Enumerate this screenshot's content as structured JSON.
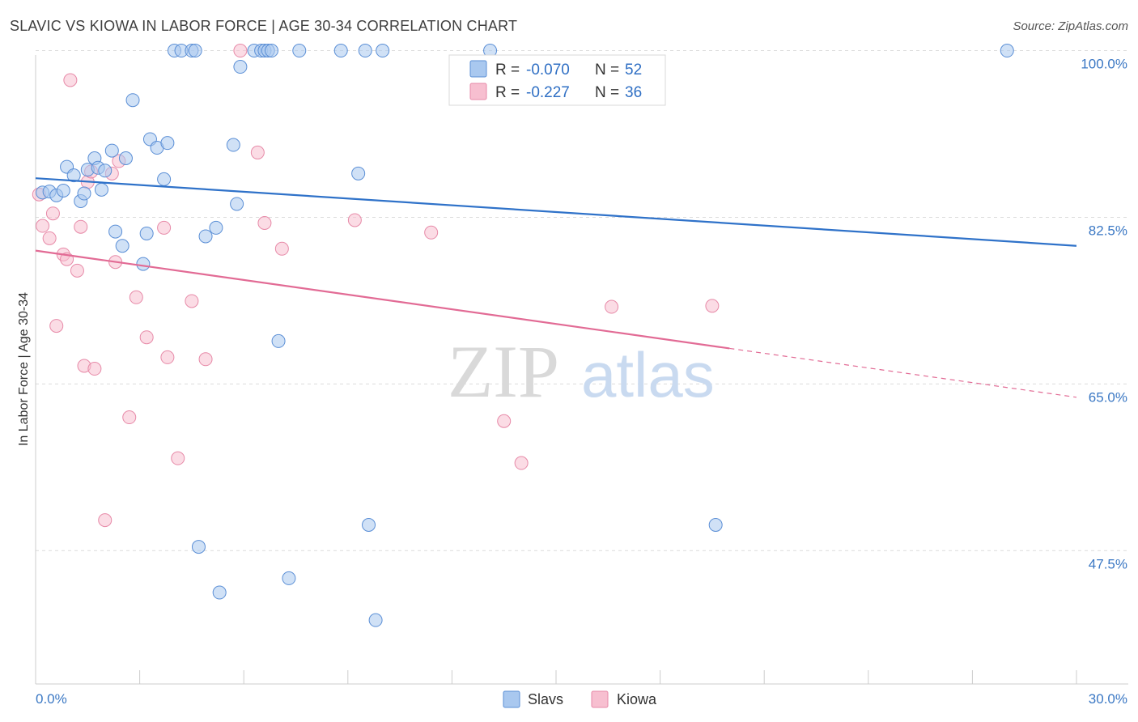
{
  "title": "SLAVIC VS KIOWA IN LABOR FORCE | AGE 30-34 CORRELATION CHART",
  "source": "Source: ZipAtlas.com",
  "watermark": {
    "zip": "ZIP",
    "atlas": "atlas"
  },
  "colors": {
    "slavs_fill": "#a9c8ef",
    "slavs_stroke": "#5b8fd6",
    "slavs_line": "#2f72c9",
    "kiowa_fill": "#f7bfd0",
    "kiowa_stroke": "#e78aa8",
    "kiowa_line": "#e26b95",
    "tick_text": "#3b78c4",
    "grid": "#dcdcdc"
  },
  "legend": {
    "r_label": "R =",
    "n_label": "N =",
    "rows": [
      {
        "series": "Slavs",
        "r": "-0.070",
        "n": "52"
      },
      {
        "series": "Kiowa",
        "r": "-0.227",
        "n": "36"
      }
    ]
  },
  "bottom_legend": [
    "Slavs",
    "Kiowa"
  ],
  "chart_data": {
    "type": "scatter",
    "title": "SLAVIC VS KIOWA IN LABOR FORCE | AGE 30-34 CORRELATION CHART",
    "xlabel": "",
    "ylabel": "In Labor Force | Age 30-34",
    "xlim": [
      0,
      30
    ],
    "ylim": [
      33.5,
      102.0
    ],
    "x_tick_labels": [
      {
        "value": 0,
        "label": "0.0%"
      },
      {
        "value": 30,
        "label": "30.0%"
      }
    ],
    "y_tick_labels": [
      {
        "value": 100.0,
        "label": "100.0%"
      },
      {
        "value": 82.5,
        "label": "82.5%"
      },
      {
        "value": 65.0,
        "label": "65.0%"
      },
      {
        "value": 47.5,
        "label": "47.5%"
      }
    ],
    "y_grid": [
      100.0,
      82.5,
      65.0,
      47.5
    ],
    "x_minor_ticks": [
      3,
      6,
      9,
      12,
      15,
      18,
      21,
      24,
      27,
      30
    ],
    "series": [
      {
        "name": "Slavs",
        "r": -0.07,
        "n": 52,
        "trend": {
          "x": [
            0,
            30
          ],
          "y": [
            86.6,
            79.5
          ],
          "solid_until": 30
        },
        "points": [
          [
            0.2,
            85.1
          ],
          [
            0.4,
            85.2
          ],
          [
            0.6,
            84.8
          ],
          [
            0.8,
            85.3
          ],
          [
            0.9,
            87.8
          ],
          [
            1.1,
            86.9
          ],
          [
            1.3,
            84.2
          ],
          [
            1.4,
            85.0
          ],
          [
            1.5,
            87.5
          ],
          [
            1.7,
            88.7
          ],
          [
            1.8,
            87.7
          ],
          [
            1.9,
            85.4
          ],
          [
            2.0,
            87.4
          ],
          [
            2.2,
            89.5
          ],
          [
            2.3,
            81.0
          ],
          [
            2.5,
            79.5
          ],
          [
            2.6,
            88.7
          ],
          [
            2.8,
            94.8
          ],
          [
            3.1,
            77.6
          ],
          [
            3.2,
            80.8
          ],
          [
            3.3,
            90.7
          ],
          [
            3.5,
            89.8
          ],
          [
            3.7,
            86.5
          ],
          [
            3.8,
            90.3
          ],
          [
            4.0,
            100.0
          ],
          [
            4.2,
            100.0
          ],
          [
            4.5,
            100.0
          ],
          [
            4.6,
            100.0
          ],
          [
            4.7,
            47.9
          ],
          [
            4.9,
            80.5
          ],
          [
            5.2,
            81.4
          ],
          [
            5.3,
            43.1
          ],
          [
            5.7,
            90.1
          ],
          [
            5.8,
            83.9
          ],
          [
            5.9,
            98.3
          ],
          [
            6.3,
            100.0
          ],
          [
            6.5,
            100.0
          ],
          [
            6.6,
            100.0
          ],
          [
            6.7,
            100.0
          ],
          [
            6.8,
            100.0
          ],
          [
            7.0,
            69.5
          ],
          [
            7.3,
            44.6
          ],
          [
            7.6,
            100.0
          ],
          [
            8.8,
            100.0
          ],
          [
            9.3,
            87.1
          ],
          [
            9.5,
            100.0
          ],
          [
            9.6,
            50.2
          ],
          [
            9.8,
            40.2
          ],
          [
            10.0,
            100.0
          ],
          [
            13.1,
            100.0
          ],
          [
            19.6,
            50.2
          ],
          [
            28.0,
            100.0
          ]
        ]
      },
      {
        "name": "Kiowa",
        "r": -0.227,
        "n": 36,
        "trend": {
          "x": [
            0,
            30
          ],
          "y": [
            79.0,
            63.6
          ],
          "solid_until": 20
        },
        "points": [
          [
            0.1,
            84.9
          ],
          [
            0.2,
            81.6
          ],
          [
            0.4,
            80.3
          ],
          [
            0.5,
            82.9
          ],
          [
            0.6,
            71.1
          ],
          [
            0.8,
            78.6
          ],
          [
            0.9,
            78.1
          ],
          [
            1.0,
            96.9
          ],
          [
            1.2,
            76.9
          ],
          [
            1.3,
            81.5
          ],
          [
            1.4,
            66.9
          ],
          [
            1.5,
            86.2
          ],
          [
            1.6,
            87.3
          ],
          [
            1.7,
            66.6
          ],
          [
            2.0,
            50.7
          ],
          [
            2.2,
            87.1
          ],
          [
            2.3,
            77.8
          ],
          [
            2.4,
            88.4
          ],
          [
            2.7,
            61.5
          ],
          [
            2.9,
            74.1
          ],
          [
            3.2,
            69.9
          ],
          [
            3.7,
            81.4
          ],
          [
            3.8,
            67.8
          ],
          [
            4.1,
            57.2
          ],
          [
            4.5,
            73.7
          ],
          [
            4.9,
            67.6
          ],
          [
            5.9,
            100.0
          ],
          [
            6.4,
            89.3
          ],
          [
            6.6,
            81.9
          ],
          [
            7.1,
            79.2
          ],
          [
            9.2,
            82.2
          ],
          [
            11.4,
            80.9
          ],
          [
            13.5,
            61.1
          ],
          [
            14.0,
            56.7
          ],
          [
            16.6,
            73.1
          ],
          [
            19.5,
            73.2
          ]
        ]
      }
    ]
  }
}
